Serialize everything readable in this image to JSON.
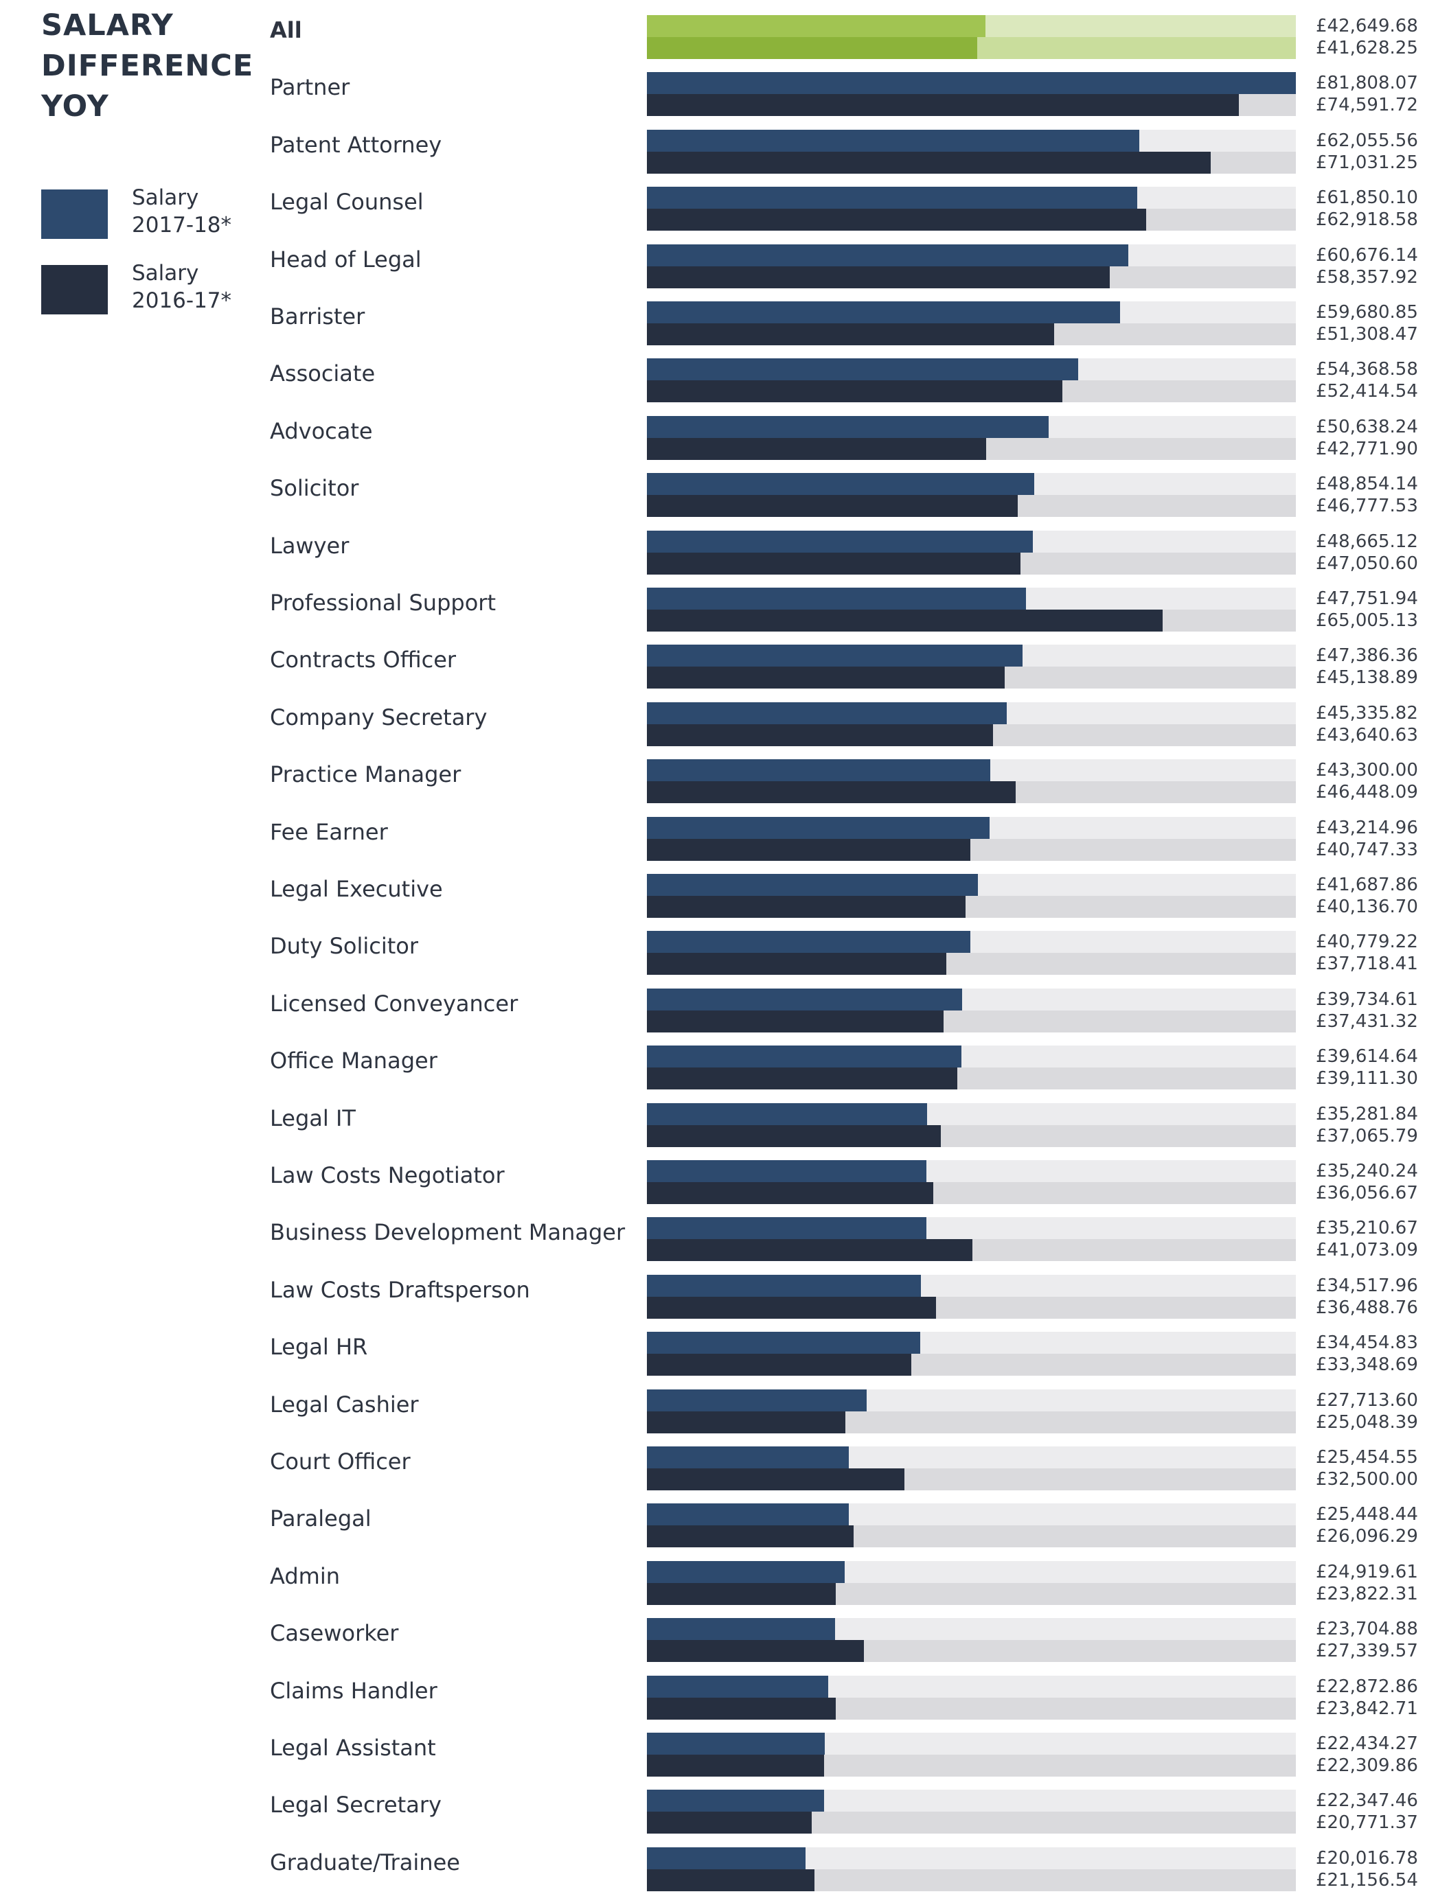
{
  "title_lines": [
    "SALARY",
    "DIFFERENCE",
    "YOY"
  ],
  "legend": [
    {
      "line1": "Salary",
      "line2": "2017-18*",
      "color": "#2d4a6e"
    },
    {
      "line1": "Salary",
      "line2": "2016-17*",
      "color": "#262f40"
    }
  ],
  "colors": {
    "series_2017": "#2d4a6e",
    "series_2016": "#262f40",
    "all_2017": "#a1c452",
    "all_2016": "#8cb33a",
    "all_track_top": "#dbe8bd",
    "all_track_bottom": "#c9dd9c"
  },
  "chart_data": {
    "type": "bar",
    "orientation": "horizontal",
    "title": "SALARY DIFFERENCE YOY",
    "xlim": [
      0,
      81808.07
    ],
    "categories": [
      "All",
      "Partner",
      "Patent Attorney",
      "Legal Counsel",
      "Head of Legal",
      "Barrister",
      "Associate",
      "Advocate",
      "Solicitor",
      "Lawyer",
      "Professional Support",
      "Contracts Officer",
      "Company Secretary",
      "Practice Manager",
      "Fee Earner",
      "Legal Executive",
      "Duty Solicitor",
      "Licensed Conveyancer",
      "Office Manager",
      "Legal IT",
      "Law Costs Negotiator",
      "Business Development Manager",
      "Law Costs Draftsperson",
      "Legal HR",
      "Legal Cashier",
      "Court Officer",
      "Paralegal",
      "Admin",
      "Caseworker",
      "Claims Handler",
      "Legal Assistant",
      "Legal Secretary",
      "Graduate/Trainee"
    ],
    "series": [
      {
        "name": "Salary 2017-18*",
        "values": [
          42649.68,
          81808.07,
          62055.56,
          61850.1,
          60676.14,
          59680.85,
          54368.58,
          50638.24,
          48854.14,
          48665.12,
          47751.94,
          47386.36,
          45335.82,
          43300.0,
          43214.96,
          41687.86,
          40779.22,
          39734.61,
          39614.64,
          35281.84,
          35240.24,
          35210.67,
          34517.96,
          34454.83,
          27713.6,
          25454.55,
          25448.44,
          24919.61,
          23704.88,
          22872.86,
          22434.27,
          22347.46,
          20016.78
        ],
        "labels": [
          "£42,649.68",
          "£81,808.07",
          "£62,055.56",
          "£61,850.10",
          "£60,676.14",
          "£59,680.85",
          "£54,368.58",
          "£50,638.24",
          "£48,854.14",
          "£48,665.12",
          "£47,751.94",
          "£47,386.36",
          "£45,335.82",
          "£43,300.00",
          "£43,214.96",
          "£41,687.86",
          "£40,779.22",
          "£39,734.61",
          "£39,614.64",
          "£35,281.84",
          "£35,240.24",
          "£35,210.67",
          "£34,517.96",
          "£34,454.83",
          "£27,713.60",
          "£25,454.55",
          "£25,448.44",
          "£24,919.61",
          "£23,704.88",
          "£22,872.86",
          "£22,434.27",
          "£22,347.46",
          "£20,016.78"
        ]
      },
      {
        "name": "Salary 2016-17*",
        "values": [
          41628.25,
          74591.72,
          71031.25,
          62918.58,
          58357.92,
          51308.47,
          52414.54,
          42771.9,
          46777.53,
          47050.6,
          65005.13,
          45138.89,
          43640.63,
          46448.09,
          40747.33,
          40136.7,
          37718.41,
          37431.32,
          39111.3,
          37065.79,
          36056.67,
          41073.09,
          36488.76,
          33348.69,
          25048.39,
          32500.0,
          26096.29,
          23822.31,
          27339.57,
          23842.71,
          22309.86,
          20771.37,
          21156.54
        ],
        "labels": [
          "£41,628.25",
          "£74,591.72",
          "£71,031.25",
          "£62,918.58",
          "£58,357.92",
          "£51,308.47",
          "£52,414.54",
          "£42,771.90",
          "£46,777.53",
          "£47,050.60",
          "£65,005.13",
          "£45,138.89",
          "£43,640.63",
          "£46,448.09",
          "£40,747.33",
          "£40,136.70",
          "£37,718.41",
          "£37,431.32",
          "£39,111.30",
          "£37,065.79",
          "£36,056.67",
          "£41,073.09",
          "£36,488.76",
          "£33,348.69",
          "£25,048.39",
          "£32,500.00",
          "£26,096.29",
          "£23,822.31",
          "£27,339.57",
          "£23,842.71",
          "£22,309.86",
          "£20,771.37",
          "£21,156.54"
        ]
      }
    ]
  }
}
